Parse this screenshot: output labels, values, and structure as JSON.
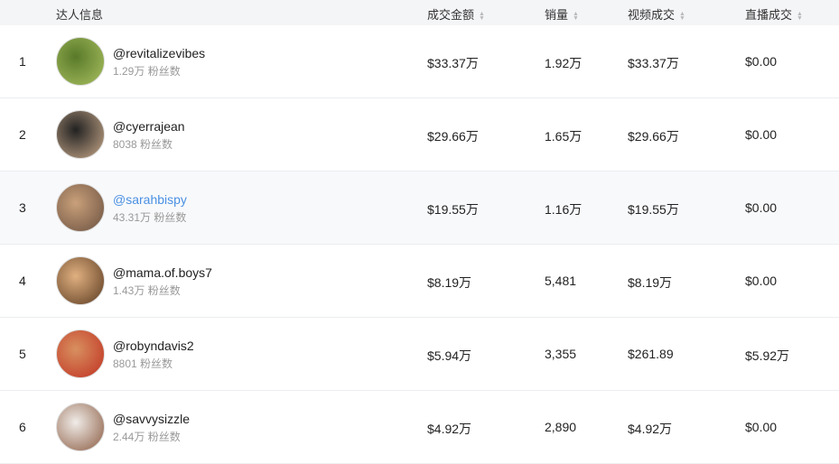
{
  "columns": {
    "creator": "达人信息",
    "gmv": "成交金额",
    "sales": "销量",
    "video": "视频成交",
    "live": "直播成交"
  },
  "fans_suffix": "粉丝数",
  "link_color": "#4a90e2",
  "rows": [
    {
      "rank": "1",
      "handle": "@revitalizevibes",
      "fans": "1.29万",
      "gmv": "$33.37万",
      "sales": "1.92万",
      "video": "$33.37万",
      "live": "$0.00"
    },
    {
      "rank": "2",
      "handle": "@cyerrajean",
      "fans": "8038",
      "gmv": "$29.66万",
      "sales": "1.65万",
      "video": "$29.66万",
      "live": "$0.00"
    },
    {
      "rank": "3",
      "handle": "@sarahbispy",
      "fans": "43.31万",
      "gmv": "$19.55万",
      "sales": "1.16万",
      "video": "$19.55万",
      "live": "$0.00"
    },
    {
      "rank": "4",
      "handle": "@mama.of.boys7",
      "fans": "1.43万",
      "gmv": "$8.19万",
      "sales": "5,481",
      "video": "$8.19万",
      "live": "$0.00"
    },
    {
      "rank": "5",
      "handle": "@robyndavis2",
      "fans": "8801",
      "gmv": "$5.94万",
      "sales": "3,355",
      "video": "$261.89",
      "live": "$5.92万"
    },
    {
      "rank": "6",
      "handle": "@savvysizzle",
      "fans": "2.44万",
      "gmv": "$4.92万",
      "sales": "2,890",
      "video": "$4.92万",
      "live": "$0.00"
    }
  ]
}
